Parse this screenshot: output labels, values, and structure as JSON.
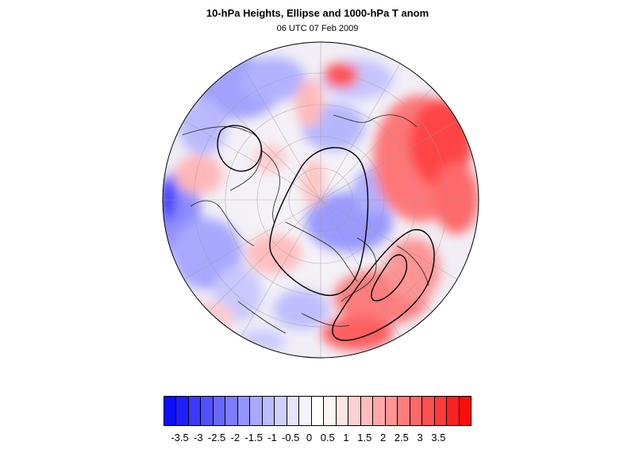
{
  "title": "10-hPa Heights, Ellipse and 1000-hPa T anom",
  "subtitle": "06 UTC 07 Feb 2009",
  "colorbar": {
    "labels": [
      "-3.5",
      "-3",
      "-2.5",
      "-2",
      "-1.5",
      "-1",
      "-0.5",
      "0",
      "0.5",
      "1",
      "1.5",
      "2",
      "2.5",
      "3",
      "3.5"
    ],
    "colors": [
      "#0d0dff",
      "#2020ff",
      "#3a3aff",
      "#5050ff",
      "#6868ff",
      "#7d7dff",
      "#9494ff",
      "#a8a8ff",
      "#bcbcff",
      "#d0d0ff",
      "#e4e4ff",
      "#f3f3ff",
      "#ffffff",
      "#fff3f3",
      "#ffe4e4",
      "#ffd0d0",
      "#ffbcbc",
      "#ffa8a8",
      "#ff9494",
      "#ff7d7d",
      "#ff6868",
      "#ff5050",
      "#ff3a3a",
      "#ff2020",
      "#ff0d0d"
    ]
  }
}
